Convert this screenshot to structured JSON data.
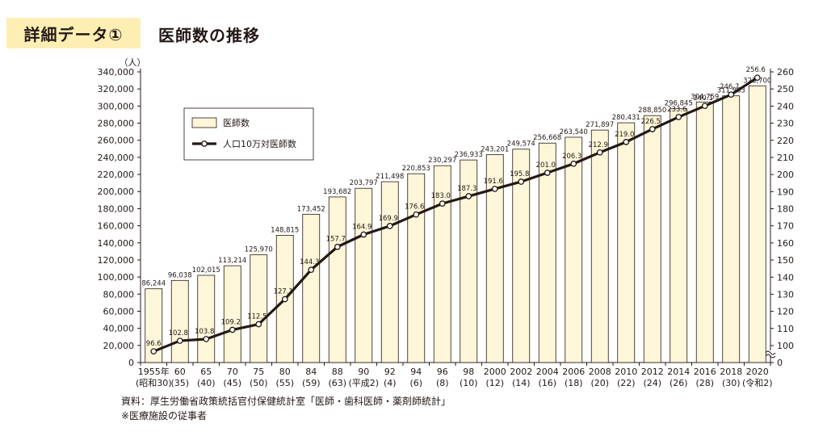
{
  "header": {
    "badge": "詳細データ①",
    "title": "医師数の推移"
  },
  "source": {
    "line1": "資料：厚生労働省政策統括官付保健統計室「医師・歯科医師・薬剤師統計」",
    "line2": "※医療施設の従事者"
  },
  "colors": {
    "bar_fill": "#fdf6d8",
    "bar_stroke": "#231815",
    "line": "#231815",
    "header_bg": "#fdeeb3"
  },
  "chart_data": {
    "type": "bar",
    "left_unit": "（人）",
    "categories": [
      "1955年",
      "60",
      "65",
      "70",
      "75",
      "80",
      "84",
      "88",
      "90",
      "92",
      "94",
      "96",
      "98",
      "2000",
      "2002",
      "2004",
      "2006",
      "2008",
      "2010",
      "2012",
      "2014",
      "2016",
      "2018",
      "2020"
    ],
    "categories_sub": [
      "(昭和30)",
      "(35)",
      "(40)",
      "(45)",
      "(50)",
      "(55)",
      "(59)",
      "(63)",
      "(平成2)",
      "(4)",
      "(6)",
      "(8)",
      "(10)",
      "(12)",
      "(14)",
      "(16)",
      "(18)",
      "(20)",
      "(22)",
      "(24)",
      "(26)",
      "(28)",
      "(30)",
      "(令和2)"
    ],
    "series": [
      {
        "name": "医師数",
        "type": "bar",
        "axis": "left",
        "values": [
          86244,
          96038,
          102015,
          113214,
          125970,
          148815,
          173452,
          193682,
          203797,
          211498,
          220853,
          230297,
          236933,
          243201,
          249574,
          256668,
          263540,
          271897,
          280431,
          288850,
          296845,
          304759,
          311963,
          323700
        ],
        "labels": [
          "86,244",
          "96,038",
          "102,015",
          "113,214",
          "125,970",
          "148,815",
          "173,452",
          "193,682",
          "203,797",
          "211,498",
          "220,853",
          "230,297",
          "236,933",
          "243,201",
          "249,574",
          "256,668",
          "263,540",
          "271,897",
          "280,431",
          "288,850",
          "296,845",
          "304,759",
          "311,963",
          "323,700"
        ]
      },
      {
        "name": "人口10万対医師数",
        "type": "line",
        "axis": "right",
        "values": [
          96.6,
          102.8,
          103.8,
          109.2,
          112.5,
          127.1,
          144.3,
          157.7,
          164.9,
          169.9,
          176.6,
          183.0,
          187.3,
          191.6,
          195.8,
          201.0,
          206.3,
          212.9,
          219.0,
          226.5,
          233.6,
          240.1,
          246.7,
          256.6
        ],
        "labels": [
          "96.6",
          "102.8",
          "103.8",
          "109.2",
          "112.5",
          "127.1",
          "144.3",
          "157.7",
          "164.9",
          "169.9",
          "176.6",
          "183.0",
          "187.3",
          "191.6",
          "195.8",
          "201.0",
          "206.3",
          "212.9",
          "219.0",
          "226.5",
          "233.6",
          "240.1",
          "246.7",
          "256.6"
        ]
      }
    ],
    "left_axis": {
      "ylim": [
        0,
        340000
      ],
      "ticks": [
        "0",
        "20,000",
        "40,000",
        "60,000",
        "80,000",
        "100,000",
        "120,000",
        "140,000",
        "160,000",
        "180,000",
        "200,000",
        "220,000",
        "240,000",
        "260,000",
        "280,000",
        "300,000",
        "320,000",
        "340,000"
      ]
    },
    "right_axis": {
      "ylim": [
        100,
        260
      ],
      "ticks": [
        "100",
        "110",
        "120",
        "130",
        "140",
        "150",
        "160",
        "170",
        "180",
        "190",
        "200",
        "210",
        "220",
        "230",
        "240",
        "250",
        "260"
      ],
      "zero_tick": "0",
      "axis_break": true
    },
    "legend_position": "top-left",
    "grid": false
  }
}
